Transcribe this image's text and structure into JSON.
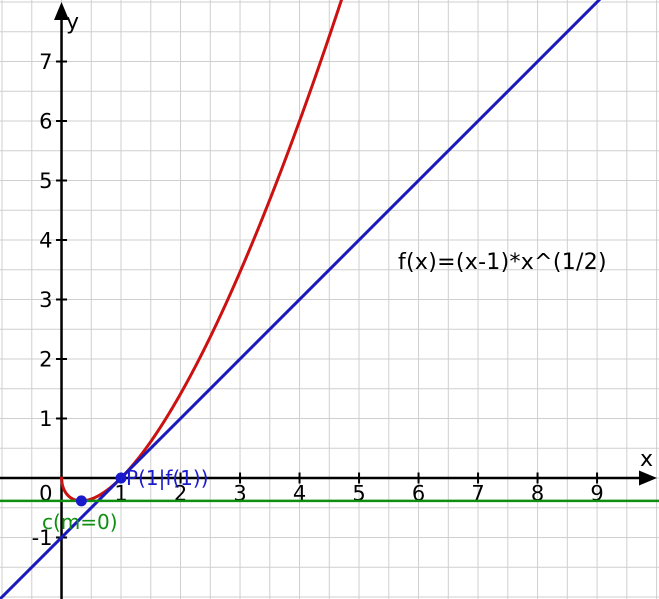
{
  "chart_data": {
    "type": "line",
    "title": "",
    "xlabel": "x",
    "ylabel": "y",
    "origin_label": "0",
    "xrange": [
      -1.034,
      10.041
    ],
    "yrange": [
      -2.034,
      8.034
    ],
    "grid": {
      "visible": true,
      "step": 0.5,
      "color": "#cfcfcf"
    },
    "axis_color": "#000000",
    "tick_label_color": "#000000",
    "x_ticks": [
      1,
      2,
      3,
      4,
      5,
      6,
      7,
      8,
      9
    ],
    "y_ticks": [
      -1,
      1,
      2,
      3,
      4,
      5,
      6,
      7
    ],
    "annotations": [
      {
        "id": "function-label",
        "text": "f(x)=(x-1)*x^(1/2)",
        "color": "#000000"
      }
    ],
    "series": [
      {
        "name": "f",
        "type": "function",
        "expr": "(x-1)*sqrt(x)",
        "domain": [
          0,
          4.85
        ],
        "color": "#cc1111",
        "width": 3
      },
      {
        "name": "tangent-at-P",
        "type": "linear",
        "slope": 1,
        "intercept": -1,
        "color": "#1a1abc",
        "width": 3,
        "label": ""
      },
      {
        "name": "c",
        "type": "linear",
        "slope": 0,
        "intercept": -0.3849,
        "color": "#0f8f0f",
        "width": 2.5,
        "label": "c(m=0)"
      }
    ],
    "points": [
      {
        "name": "P",
        "label": "P(1|f(1))",
        "x": 1,
        "y": 0,
        "color": "#1a1acd",
        "radius": 5.5
      },
      {
        "name": "minimum-point",
        "label": "",
        "x": 0.33333,
        "y": -0.3849,
        "color": "#1a1acd",
        "radius": 5.5
      }
    ]
  }
}
